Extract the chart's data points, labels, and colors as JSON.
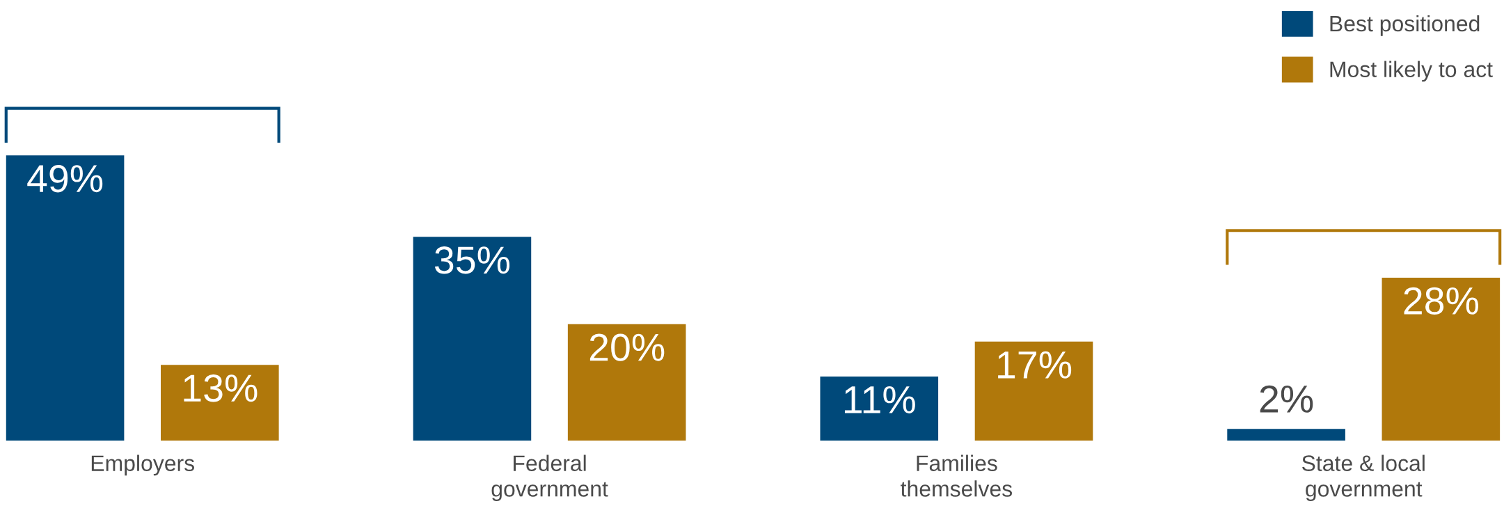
{
  "chart_data": {
    "type": "bar",
    "categories": [
      "Employers",
      "Federal government",
      "Families themselves",
      "State & local government"
    ],
    "series": [
      {
        "name": "Best positioned",
        "color": "#00497a",
        "values": [
          49,
          35,
          11,
          2
        ],
        "value_labels": [
          "49%",
          "35%",
          "11%",
          "2%"
        ]
      },
      {
        "name": "Most likely to act",
        "color": "#b0780b",
        "values": [
          13,
          20,
          17,
          28
        ],
        "value_labels": [
          "13%",
          "20%",
          "17%",
          "28%"
        ]
      }
    ],
    "legend": "top right"
  }
}
